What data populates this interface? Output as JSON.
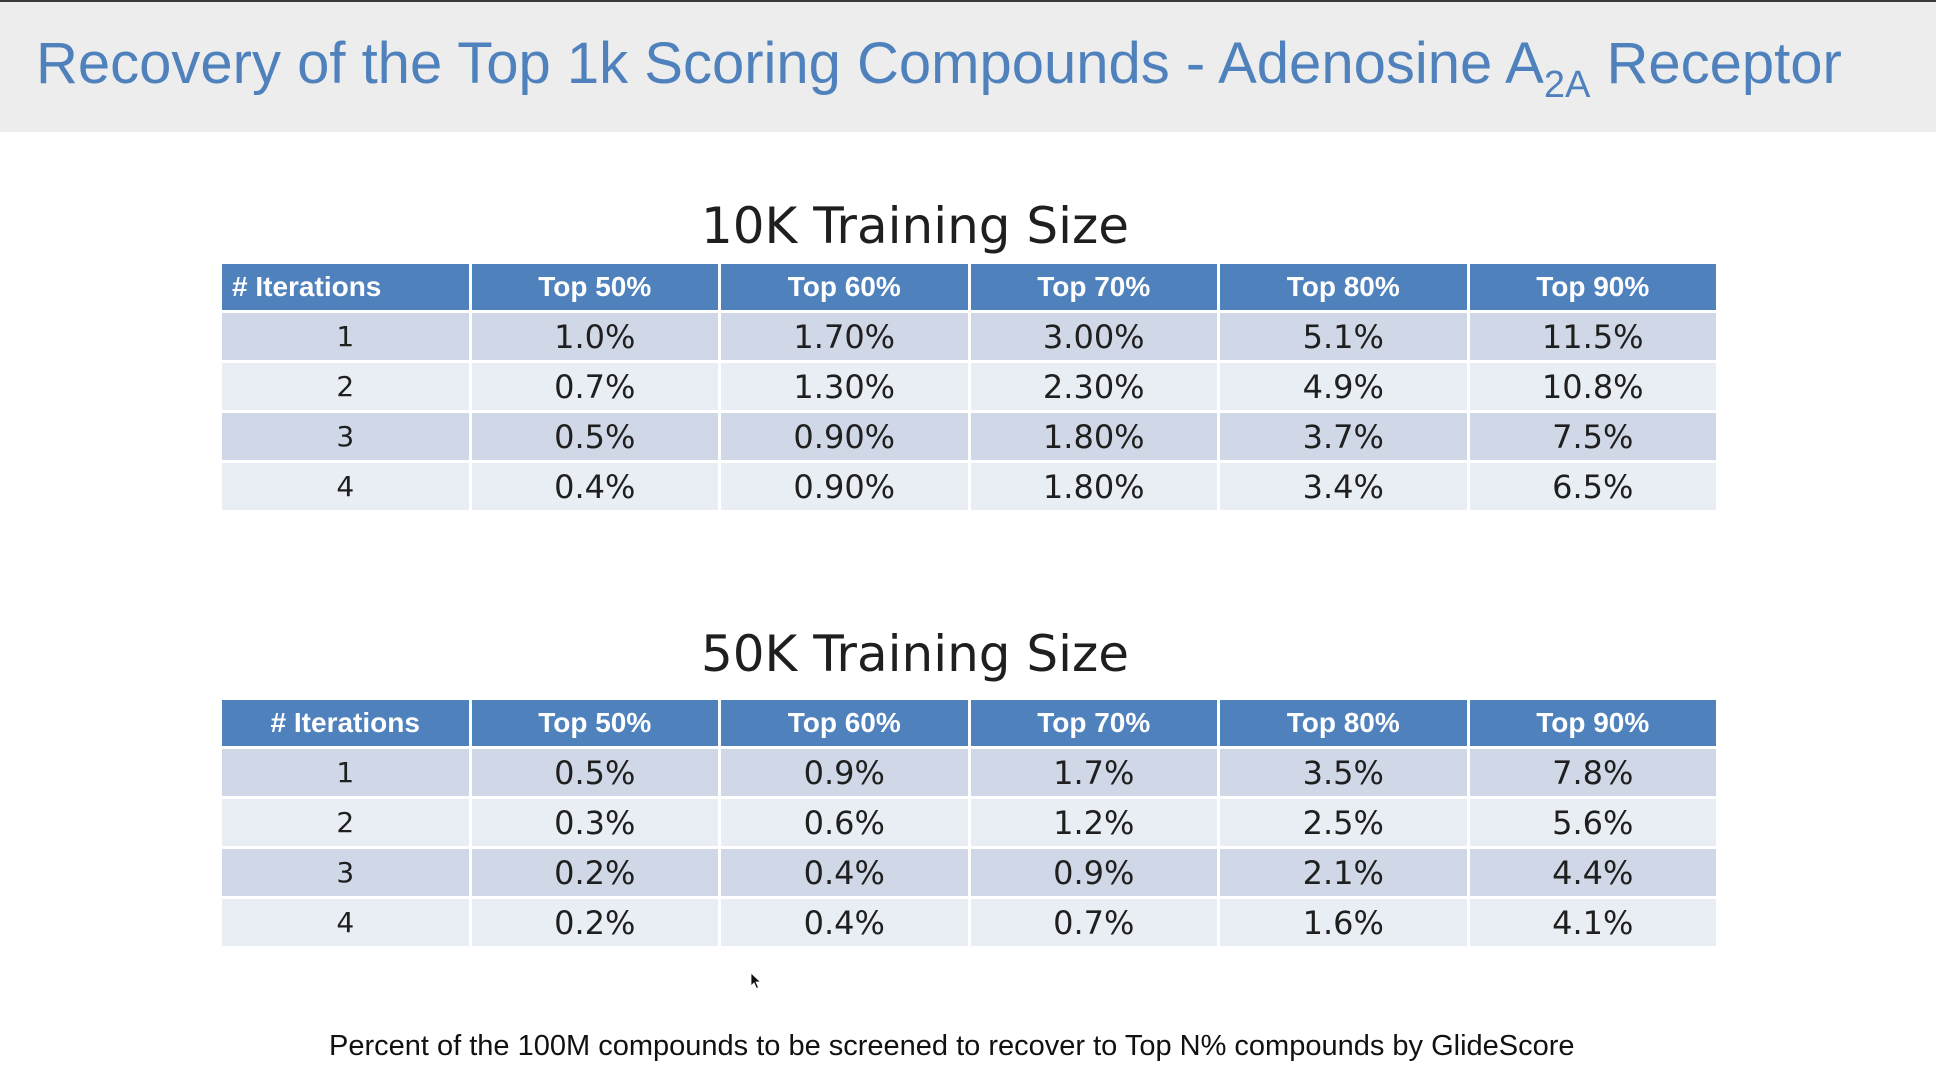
{
  "slide": {
    "title_main": "Recovery of the Top 1k Scoring Compounds - Adenosine A",
    "title_sub": "2A",
    "title_end": " Receptor",
    "footnote": "Percent of the 100M compounds to be screened to recover to Top N% compounds by GlideScore"
  },
  "tables": [
    {
      "title": "10K Training Size",
      "headers": [
        "# Iterations",
        "Top 50%",
        "Top 60%",
        "Top 70%",
        "Top 80%",
        "Top 90%"
      ],
      "rows": [
        [
          "1",
          "1.0%",
          "1.70%",
          "3.00%",
          "5.1%",
          "11.5%"
        ],
        [
          "2",
          "0.7%",
          "1.30%",
          "2.30%",
          "4.9%",
          "10.8%"
        ],
        [
          "3",
          "0.5%",
          "0.90%",
          "1.80%",
          "3.7%",
          "7.5%"
        ],
        [
          "4",
          "0.4%",
          "0.90%",
          "1.80%",
          "3.4%",
          "6.5%"
        ]
      ]
    },
    {
      "title": "50K Training Size",
      "headers": [
        "# Iterations",
        "Top 50%",
        "Top 60%",
        "Top 70%",
        "Top 80%",
        "Top 90%"
      ],
      "rows": [
        [
          "1",
          "0.5%",
          "0.9%",
          "1.7%",
          "3.5%",
          "7.8%"
        ],
        [
          "2",
          "0.3%",
          "0.6%",
          "1.2%",
          "2.5%",
          "5.6%"
        ],
        [
          "3",
          "0.2%",
          "0.4%",
          "0.9%",
          "2.1%",
          "4.4%"
        ],
        [
          "4",
          "0.2%",
          "0.4%",
          "0.7%",
          "1.6%",
          "4.1%"
        ]
      ]
    }
  ],
  "colors": {
    "title": "#4f81bd",
    "header_bg": "#4f81bd",
    "row_odd": "#d0d8e8",
    "row_even": "#e9edf4"
  }
}
